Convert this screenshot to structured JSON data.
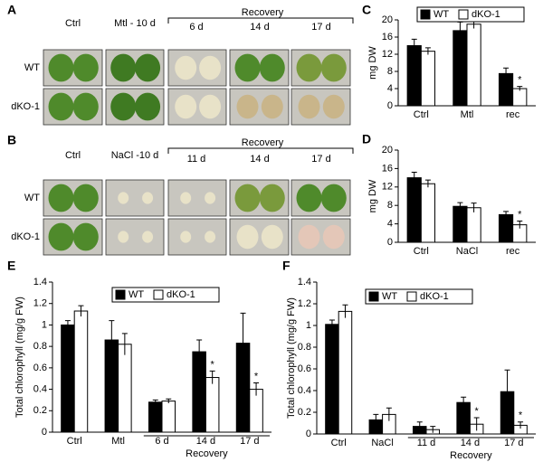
{
  "photos": [
    {
      "label": "A",
      "columns": [
        "Ctrl",
        "Mtl - 10 d",
        "6 d",
        "14 d",
        "17 d"
      ],
      "group": "Recovery",
      "rows": [
        "WT",
        "dKO-1"
      ]
    },
    {
      "label": "B",
      "columns": [
        "Ctrl",
        "NaCl -10 d",
        "11 d",
        "14 d",
        "17 d"
      ],
      "group": "Recovery",
      "rows": [
        "WT",
        "dKO-1"
      ]
    }
  ],
  "chart_data": [
    {
      "type": "bar",
      "label": "C",
      "ylabel": "mg DW",
      "categories": [
        "Ctrl",
        "Mtl",
        "rec"
      ],
      "series": [
        {
          "name": "WT",
          "color": "#000000",
          "values": [
            14,
            17.5,
            7.5
          ],
          "errors": [
            1.5,
            2,
            1.3
          ],
          "significance": [
            null,
            null,
            null
          ]
        },
        {
          "name": "dKO-1",
          "color": "#ffffff",
          "values": [
            12.7,
            19,
            4
          ],
          "errors": [
            0.8,
            1,
            0.5
          ],
          "significance": [
            null,
            null,
            "*"
          ]
        }
      ],
      "ylim": [
        0,
        20
      ],
      "yticks": [
        0,
        4,
        8,
        12,
        16,
        20
      ],
      "legend": "top"
    },
    {
      "type": "bar",
      "label": "D",
      "ylabel": "mg DW",
      "categories": [
        "Ctrl",
        "NaCl",
        "rec"
      ],
      "series": [
        {
          "name": "WT",
          "color": "#000000",
          "values": [
            14,
            7.8,
            6
          ],
          "errors": [
            1.2,
            0.8,
            0.7
          ],
          "significance": [
            null,
            null,
            null
          ]
        },
        {
          "name": "dKO-1",
          "color": "#ffffff",
          "values": [
            12.7,
            7.5,
            3.8
          ],
          "errors": [
            0.8,
            1,
            0.8
          ],
          "significance": [
            null,
            null,
            "*"
          ]
        }
      ],
      "ylim": [
        0,
        20
      ],
      "yticks": [
        0,
        4,
        8,
        12,
        16,
        20
      ]
    },
    {
      "type": "bar",
      "label": "E",
      "ylabel": "Total chlorophyll (mg/g FW)",
      "categories": [
        "Ctrl",
        "Mtl",
        "6 d",
        "14 d",
        "17 d"
      ],
      "group": "Recovery",
      "series": [
        {
          "name": "WT",
          "color": "#000000",
          "values": [
            1.0,
            0.86,
            0.28,
            0.75,
            0.83
          ],
          "errors": [
            0.04,
            0.18,
            0.02,
            0.11,
            0.28
          ],
          "significance": [
            null,
            null,
            null,
            null,
            null
          ]
        },
        {
          "name": "dKO-1",
          "color": "#ffffff",
          "values": [
            1.13,
            0.82,
            0.29,
            0.51,
            0.4
          ],
          "errors": [
            0.05,
            0.1,
            0.02,
            0.06,
            0.06
          ],
          "significance": [
            null,
            null,
            null,
            "*",
            "*"
          ]
        }
      ],
      "ylim": [
        0,
        1.4
      ],
      "yticks": [
        0,
        0.2,
        0.4,
        0.6,
        0.8,
        1,
        1.2,
        1.4
      ],
      "legend": "top"
    },
    {
      "type": "bar",
      "label": "F",
      "ylabel": "Total chlorophyll (mg/g FW)",
      "categories": [
        "Ctrl",
        "NaCl",
        "11 d",
        "14 d",
        "17 d"
      ],
      "group": "Recovery",
      "series": [
        {
          "name": "WT",
          "color": "#000000",
          "values": [
            1.01,
            0.13,
            0.07,
            0.29,
            0.39
          ],
          "errors": [
            0.04,
            0.05,
            0.04,
            0.05,
            0.2
          ],
          "significance": [
            null,
            null,
            null,
            null,
            null
          ]
        },
        {
          "name": "dKO-1",
          "color": "#ffffff",
          "values": [
            1.13,
            0.18,
            0.04,
            0.09,
            0.08
          ],
          "errors": [
            0.06,
            0.06,
            0.03,
            0.06,
            0.03
          ],
          "significance": [
            null,
            null,
            null,
            "*",
            "*"
          ]
        }
      ],
      "ylim": [
        0,
        1.4
      ],
      "yticks": [
        0,
        0.2,
        0.4,
        0.6,
        0.8,
        1,
        1.2,
        1.4
      ],
      "legend": "top"
    }
  ]
}
